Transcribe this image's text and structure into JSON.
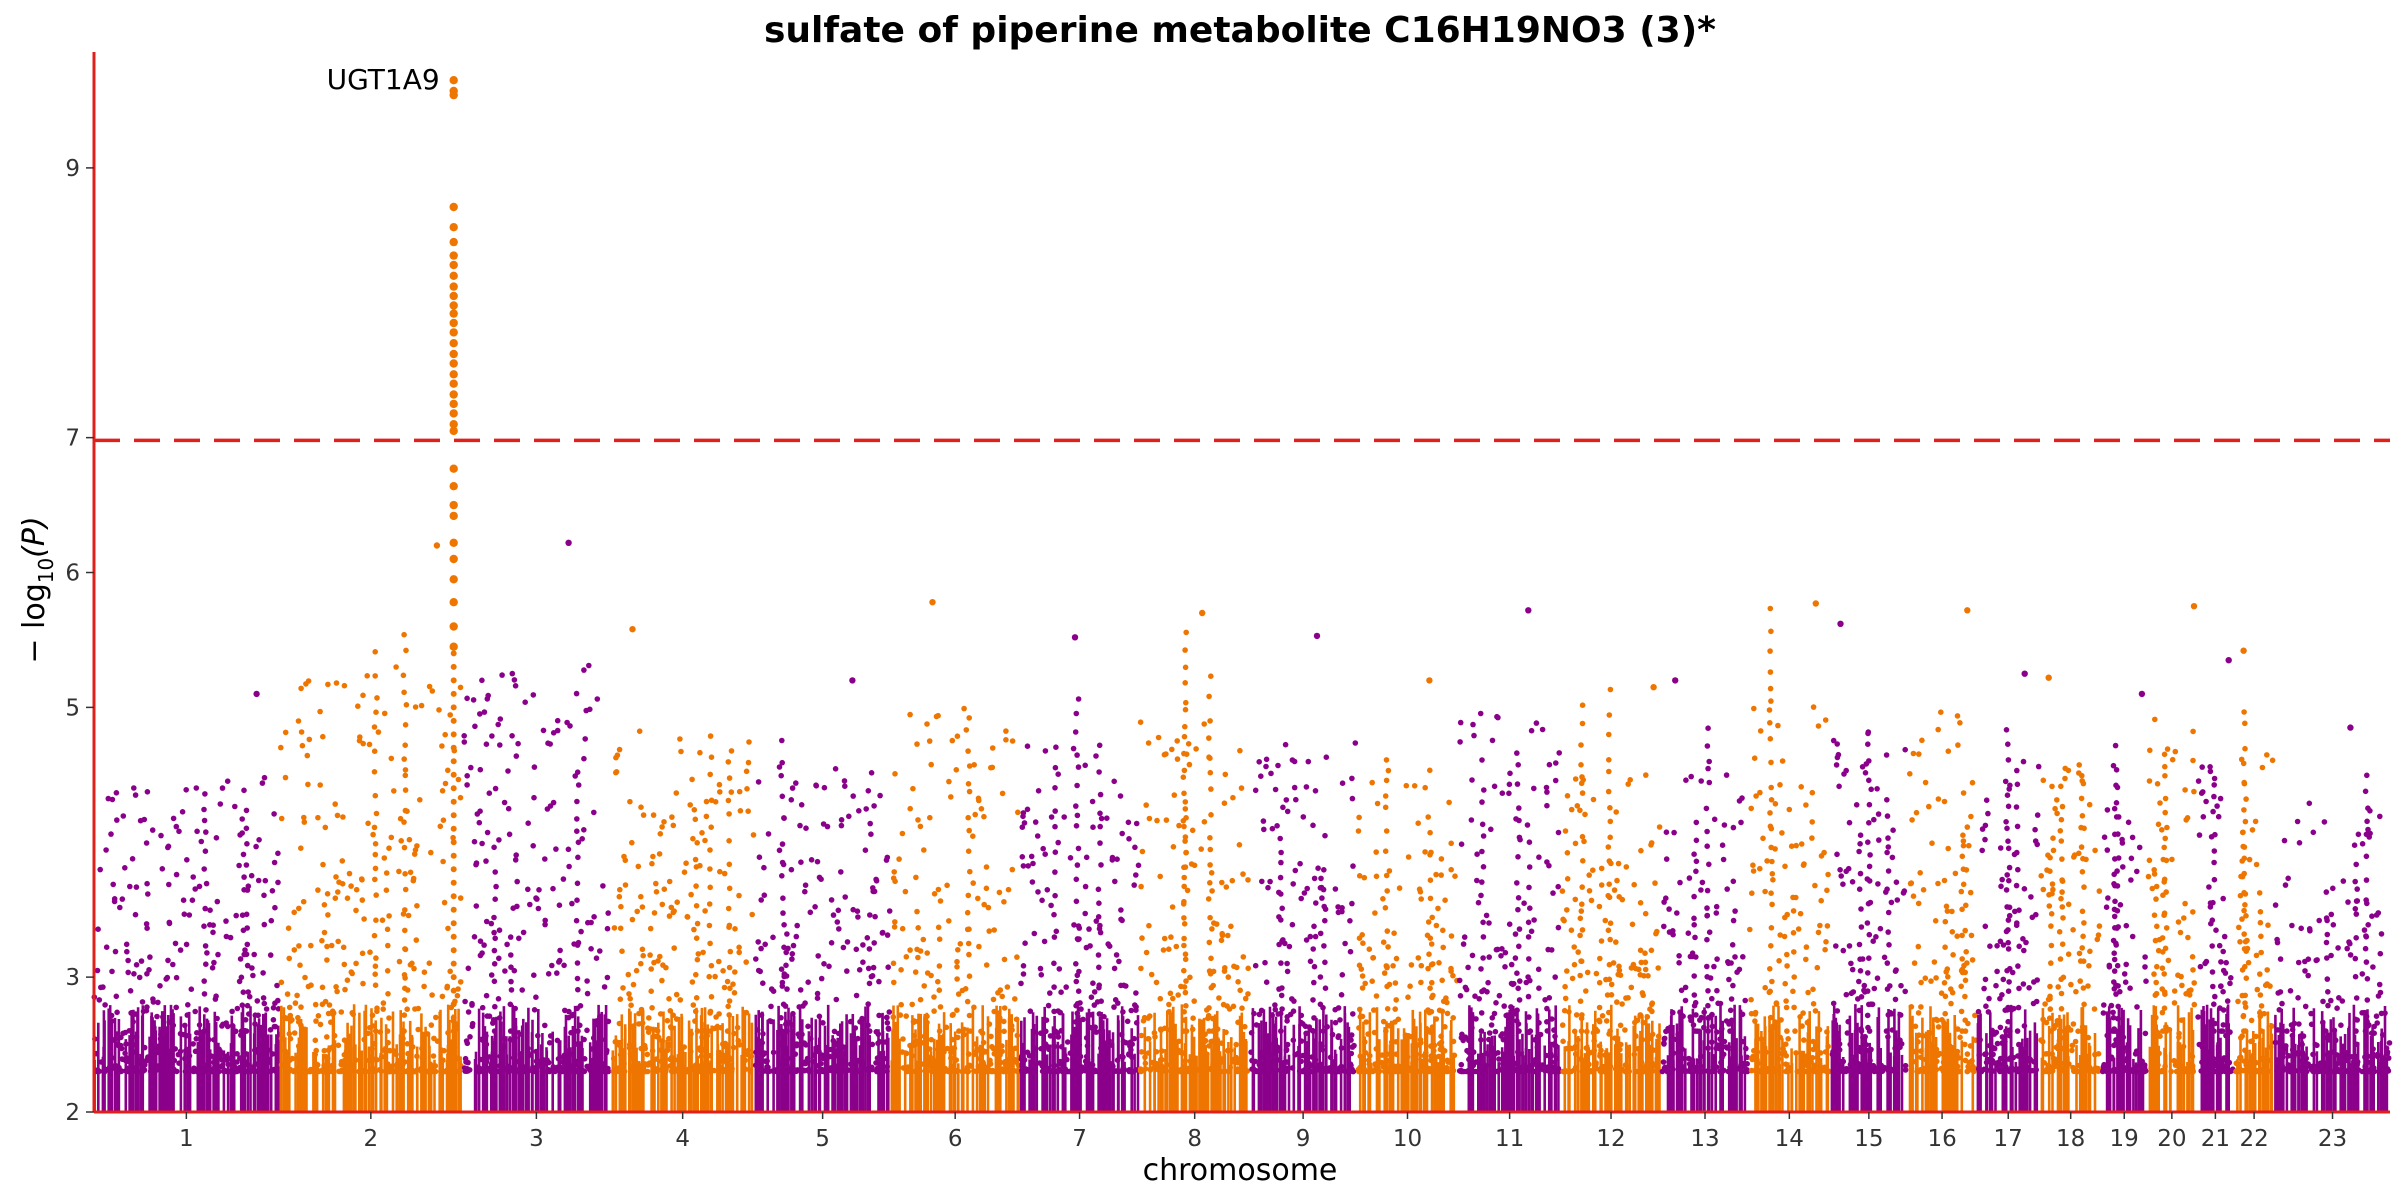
{
  "chart_data": {
    "type": "scatter",
    "title": "sulfate of piperine metabolite C16H19NO3 (3)*",
    "xlabel": "chromosome",
    "ylabel_main": "− log",
    "ylabel_sub": "10",
    "ylabel_tail": "(P)",
    "ylim": [
      2,
      9.8
    ],
    "yticks": [
      2,
      3,
      5,
      6,
      7,
      9
    ],
    "threshold": 6.98,
    "grid": false,
    "legend": "none",
    "colors": {
      "odd": "#8b008b",
      "even": "#ee7600",
      "axis": "#e0201b",
      "threshold": "#e0201b"
    },
    "chromosomes": [
      {
        "label": "1",
        "length": 249,
        "peak": 5.1
      },
      {
        "label": "2",
        "length": 243,
        "peak": 6.2
      },
      {
        "label": "3",
        "length": 198,
        "peak": 6.22
      },
      {
        "label": "4",
        "length": 191,
        "peak": 5.58
      },
      {
        "label": "5",
        "length": 181,
        "peak": 5.2
      },
      {
        "label": "6",
        "length": 171,
        "peak": 5.78
      },
      {
        "label": "7",
        "length": 159,
        "peak": 5.52
      },
      {
        "label": "8",
        "length": 146,
        "peak": 5.7
      },
      {
        "label": "9",
        "length": 141,
        "peak": 5.53
      },
      {
        "label": "10",
        "length": 135,
        "peak": 5.2
      },
      {
        "label": "11",
        "length": 135,
        "peak": 5.72
      },
      {
        "label": "12",
        "length": 133,
        "peak": 5.15
      },
      {
        "label": "13",
        "length": 115,
        "peak": 5.2
      },
      {
        "label": "14",
        "length": 107,
        "peak": 5.77
      },
      {
        "label": "15",
        "length": 102,
        "peak": 5.62
      },
      {
        "label": "16",
        "length": 90,
        "peak": 5.72
      },
      {
        "label": "17",
        "length": 83,
        "peak": 5.25
      },
      {
        "label": "18",
        "length": 80,
        "peak": 5.22
      },
      {
        "label": "19",
        "length": 59,
        "peak": 5.1
      },
      {
        "label": "20",
        "length": 64,
        "peak": 5.75
      },
      {
        "label": "21",
        "length": 48,
        "peak": 5.35
      },
      {
        "label": "22",
        "length": 51,
        "peak": 5.42
      },
      {
        "label": "23",
        "length": 155,
        "peak": 4.85
      }
    ],
    "lead_hit": {
      "label": "UGT1A9",
      "chromosome": "2",
      "position_fraction": 0.96,
      "values": [
        9.65,
        9.57,
        9.54,
        8.71,
        8.56,
        8.45,
        8.35,
        8.28,
        8.2,
        8.12,
        8.05,
        7.98,
        7.92,
        7.85,
        7.78,
        7.7,
        7.62,
        7.55,
        7.47,
        7.4,
        7.32,
        7.25,
        7.18,
        7.1,
        7.05,
        6.77,
        6.64,
        6.5,
        6.42,
        6.22,
        6.1,
        5.95,
        5.78,
        5.6,
        5.45
      ]
    }
  }
}
